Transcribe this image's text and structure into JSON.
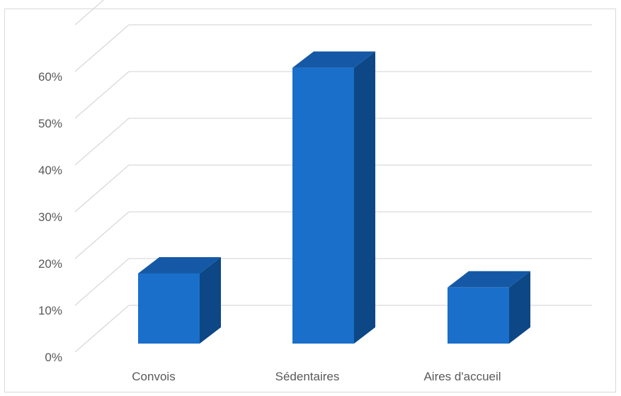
{
  "chart_data": {
    "type": "bar",
    "style": "3d-column",
    "categories": [
      "Convois",
      "Sédentaires",
      "Aires d'accueil"
    ],
    "values": [
      0.15,
      0.59,
      0.12
    ],
    "title": "",
    "xlabel": "",
    "ylabel": "",
    "ylim": [
      0,
      0.6
    ],
    "yticks": [
      "0%",
      "10%",
      "20%",
      "30%",
      "40%",
      "50%",
      "60%"
    ],
    "grid": true,
    "legend": "none",
    "colors": {
      "bar_front": "#1a6fcb",
      "bar_top": "#1559a6",
      "bar_side": "#0d4785",
      "grid": "#d9d9d9",
      "text": "#595959"
    }
  }
}
